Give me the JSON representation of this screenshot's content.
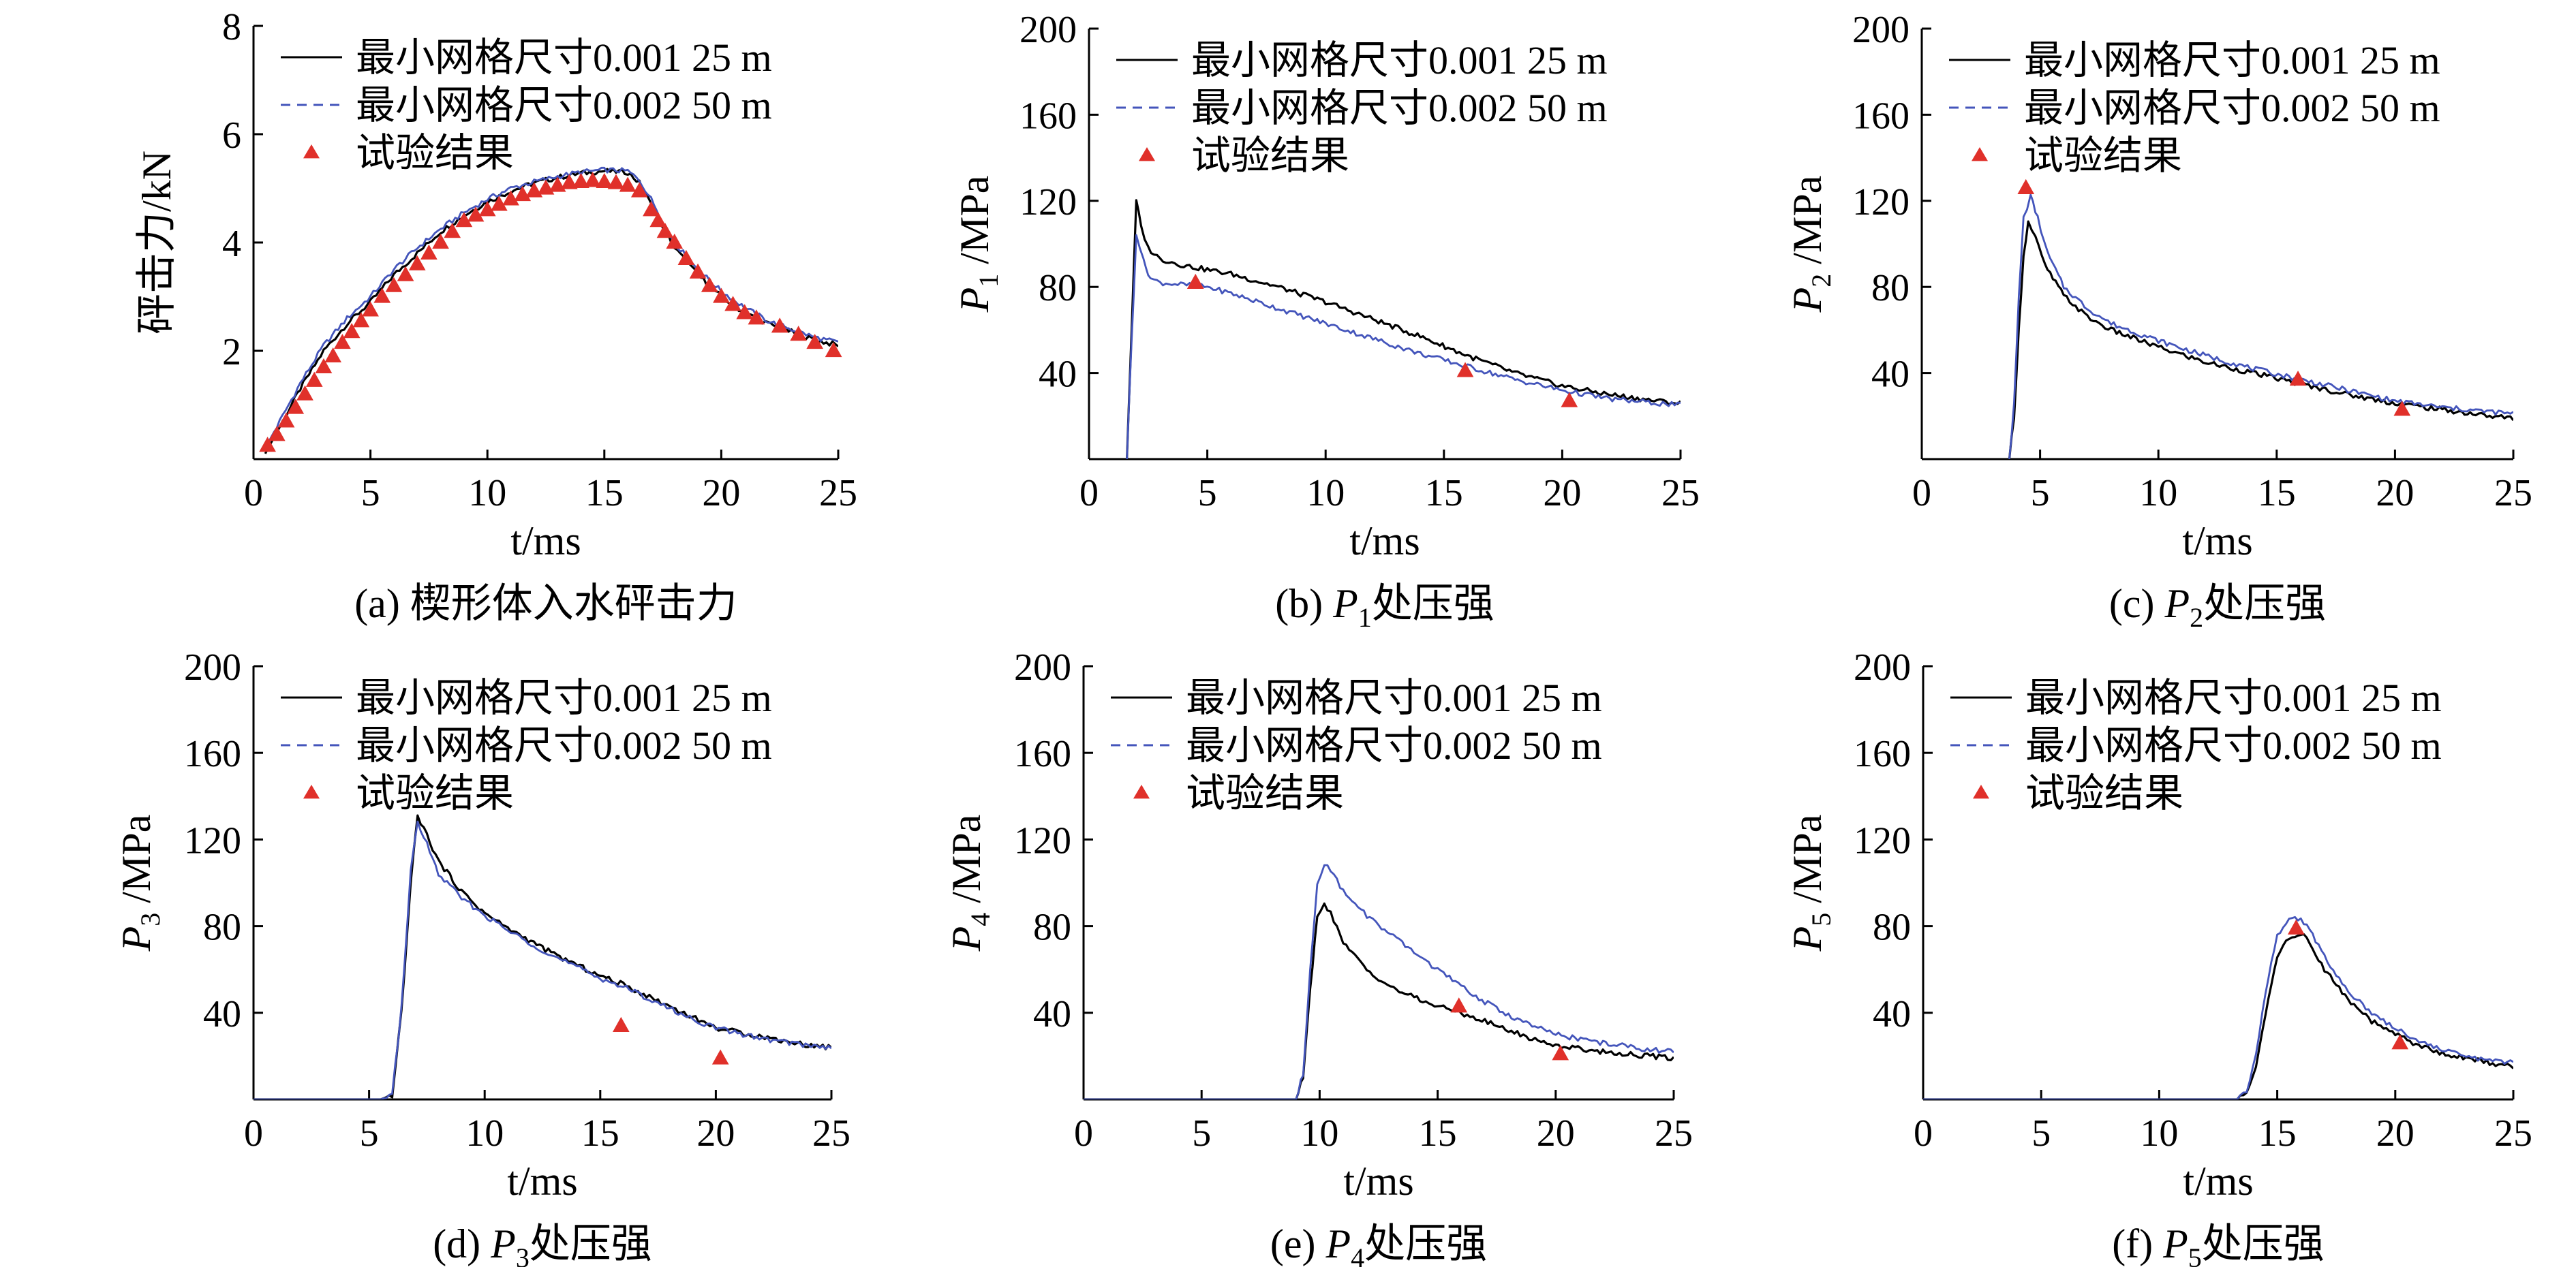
{
  "legend": {
    "fine": "最小网格尺寸0.001 25 m",
    "coarse": "最小网格尺寸0.002 50 m",
    "test": "试验结果"
  },
  "colors": {
    "fine": "#000000",
    "coarse": "#4455bb",
    "test": "#e0302a"
  },
  "chart_data": [
    {
      "type": "line",
      "id": "a",
      "caption": "(a) 楔形体入水砰击力",
      "xlabel": "t/ms",
      "ylabel": "砰击力/kN",
      "xlim": [
        0,
        25
      ],
      "ylim": [
        0,
        8
      ],
      "xticks": [
        0,
        5,
        10,
        15,
        20,
        25
      ],
      "yticks": [
        2,
        4,
        6,
        8
      ],
      "series": [
        {
          "name": "最小网格尺寸0.001 25 m",
          "x": [
            0.5,
            1,
            2,
            3,
            4,
            5,
            6,
            7,
            8,
            9,
            10,
            11,
            12,
            13,
            14,
            15,
            16,
            16.5,
            17,
            17.5,
            18,
            19,
            20,
            21,
            22,
            23,
            24,
            25
          ],
          "y": [
            0.1,
            0.5,
            1.3,
            2.0,
            2.5,
            2.9,
            3.4,
            3.8,
            4.2,
            4.5,
            4.75,
            4.95,
            5.1,
            5.2,
            5.28,
            5.32,
            5.3,
            5.1,
            4.7,
            4.3,
            3.9,
            3.4,
            3.0,
            2.7,
            2.5,
            2.35,
            2.2,
            2.1
          ]
        },
        {
          "name": "最小网格尺寸0.002 50 m",
          "x": [
            0.5,
            1,
            2,
            3,
            4,
            5,
            6,
            7,
            8,
            9,
            10,
            11,
            12,
            13,
            14,
            15,
            16,
            16.5,
            17,
            17.5,
            18,
            19,
            20,
            21,
            22,
            23,
            24,
            25
          ],
          "y": [
            0.2,
            0.6,
            1.4,
            2.1,
            2.6,
            3.0,
            3.5,
            3.9,
            4.25,
            4.55,
            4.8,
            5.0,
            5.12,
            5.22,
            5.3,
            5.34,
            5.32,
            5.15,
            4.8,
            4.4,
            4.0,
            3.5,
            3.1,
            2.8,
            2.55,
            2.4,
            2.25,
            2.15
          ]
        },
        {
          "name": "试验结果",
          "x": [
            0.6,
            1.0,
            1.4,
            1.8,
            2.2,
            2.6,
            3.0,
            3.4,
            3.8,
            4.2,
            4.6,
            5.0,
            5.5,
            6.0,
            6.5,
            7.0,
            7.5,
            8.0,
            8.5,
            9.0,
            9.5,
            10.0,
            10.5,
            11.0,
            11.5,
            12.0,
            12.5,
            13.0,
            13.5,
            14.0,
            14.5,
            15.0,
            15.5,
            16.0,
            16.5,
            17.0,
            17.3,
            17.6,
            18.0,
            18.5,
            19.0,
            19.5,
            20.0,
            20.5,
            21.0,
            21.5,
            22.5,
            23.3,
            24.0,
            24.8
          ],
          "y": [
            0.25,
            0.45,
            0.7,
            0.95,
            1.2,
            1.45,
            1.7,
            1.9,
            2.15,
            2.35,
            2.55,
            2.75,
            3.0,
            3.2,
            3.4,
            3.6,
            3.8,
            4.0,
            4.2,
            4.4,
            4.5,
            4.6,
            4.7,
            4.8,
            4.88,
            4.95,
            5.0,
            5.05,
            5.1,
            5.12,
            5.14,
            5.12,
            5.1,
            5.05,
            4.95,
            4.6,
            4.4,
            4.2,
            4.0,
            3.7,
            3.45,
            3.2,
            3.0,
            2.85,
            2.7,
            2.6,
            2.45,
            2.3,
            2.15,
            2.0
          ]
        }
      ]
    },
    {
      "type": "line",
      "id": "b",
      "caption_prefix": "(b) ",
      "caption_var": "P",
      "caption_sub": "1",
      "caption_suffix": "处压强",
      "xlabel": "t/ms",
      "ylabel_var": "P",
      "ylabel_sub": "1",
      "ylabel_unit": "/MPa",
      "xlim": [
        0,
        25
      ],
      "ylim": [
        0,
        200
      ],
      "xticks": [
        0,
        5,
        10,
        15,
        20,
        25
      ],
      "yticks": [
        40,
        80,
        120,
        160,
        200
      ],
      "series": [
        {
          "name": "最小网格尺寸0.001 25 m",
          "x": [
            1.6,
            1.8,
            2.0,
            2.2,
            2.5,
            3,
            4,
            5,
            6,
            8,
            10,
            12,
            14,
            16,
            18,
            20,
            22,
            24,
            25
          ],
          "y": [
            0,
            60,
            120,
            108,
            98,
            93,
            90,
            88,
            86,
            80,
            73,
            65,
            57,
            48,
            40,
            34,
            30,
            27,
            26
          ]
        },
        {
          "name": "最小网格尺寸0.002 50 m",
          "x": [
            1.6,
            1.8,
            2.0,
            2.3,
            2.6,
            3,
            4,
            5,
            6,
            8,
            10,
            12,
            14,
            16,
            18,
            20,
            22,
            24,
            25
          ],
          "y": [
            0,
            55,
            105,
            92,
            84,
            82,
            81,
            80,
            77,
            70,
            63,
            56,
            49,
            43,
            37,
            32,
            28,
            26,
            25
          ]
        },
        {
          "name": "试验结果",
          "x": [
            4.5,
            15.9,
            20.3
          ],
          "y": [
            82,
            41,
            27
          ]
        }
      ]
    },
    {
      "type": "line",
      "id": "c",
      "caption_prefix": "(c) ",
      "caption_var": "P",
      "caption_sub": "2",
      "caption_suffix": "处压强",
      "xlabel": "t/ms",
      "ylabel_var": "P",
      "ylabel_sub": "2",
      "ylabel_unit": "/MPa",
      "xlim": [
        0,
        25
      ],
      "ylim": [
        0,
        200
      ],
      "xticks": [
        0,
        5,
        10,
        15,
        20,
        25
      ],
      "yticks": [
        40,
        80,
        120,
        160,
        200
      ],
      "series": [
        {
          "name": "最小网格尺寸0.001 25 m",
          "x": [
            3.7,
            3.9,
            4.1,
            4.3,
            4.5,
            4.8,
            5.2,
            6,
            7,
            8,
            10,
            12,
            14,
            16,
            18,
            20,
            22,
            24,
            25
          ],
          "y": [
            0,
            20,
            60,
            95,
            110,
            103,
            90,
            76,
            66,
            60,
            52,
            45,
            40,
            35,
            30,
            26,
            23,
            20,
            19
          ]
        },
        {
          "name": "最小网格尺寸0.002 50 m",
          "x": [
            3.7,
            3.9,
            4.1,
            4.3,
            4.6,
            4.9,
            5.3,
            6,
            7,
            8,
            10,
            12,
            14,
            16,
            18,
            20,
            22,
            24,
            25
          ],
          "y": [
            0,
            25,
            75,
            112,
            122,
            112,
            96,
            80,
            70,
            63,
            55,
            48,
            42,
            37,
            32,
            27,
            24,
            22,
            21
          ]
        },
        {
          "name": "试验结果",
          "x": [
            4.4,
            15.9,
            20.3
          ],
          "y": [
            126,
            37,
            23
          ]
        }
      ]
    },
    {
      "type": "line",
      "id": "d",
      "caption_prefix": "(d) ",
      "caption_var": "P",
      "caption_sub": "3",
      "caption_suffix": "处压强",
      "xlabel": "t/ms",
      "ylabel_var": "P",
      "ylabel_sub": "3",
      "ylabel_unit": "/MPa",
      "xlim": [
        0,
        25
      ],
      "ylim": [
        0,
        200
      ],
      "xticks": [
        0,
        5,
        10,
        15,
        20,
        25
      ],
      "yticks": [
        40,
        80,
        120,
        160,
        200
      ],
      "series": [
        {
          "name": "最小网格尺寸0.001 25 m",
          "x": [
            0,
            5.5,
            6.0,
            6.4,
            6.8,
            7.1,
            7.5,
            8,
            9,
            10,
            11,
            12,
            13,
            14,
            15,
            16,
            17,
            18,
            19,
            20,
            22,
            24,
            25
          ],
          "y": [
            0,
            0,
            2,
            40,
            100,
            131,
            122,
            110,
            96,
            86,
            79,
            73,
            67,
            62,
            57,
            53,
            48,
            43,
            38,
            33,
            29,
            25,
            24
          ]
        },
        {
          "name": "最小网格尺寸0.002 50 m",
          "x": [
            0,
            5.5,
            6.0,
            6.4,
            6.8,
            7.1,
            7.5,
            8,
            9,
            10,
            11,
            12,
            13,
            14,
            15,
            16,
            17,
            18,
            19,
            20,
            22,
            24,
            25
          ],
          "y": [
            0,
            0,
            2,
            42,
            105,
            128,
            118,
            104,
            93,
            85,
            78,
            72,
            66,
            61,
            56,
            52,
            47,
            42,
            37,
            33,
            28,
            25,
            24
          ]
        },
        {
          "name": "试验结果",
          "x": [
            15.9,
            20.2
          ],
          "y": [
            34,
            19
          ]
        }
      ]
    },
    {
      "type": "line",
      "id": "e",
      "caption_prefix": "(e) ",
      "caption_var": "P",
      "caption_sub": "4",
      "caption_suffix": "处压强",
      "xlabel": "t/ms",
      "ylabel_var": "P",
      "ylabel_sub": "4",
      "ylabel_unit": "/MPa",
      "xlim": [
        0,
        25
      ],
      "ylim": [
        0,
        200
      ],
      "xticks": [
        0,
        5,
        10,
        15,
        20,
        25
      ],
      "yticks": [
        40,
        80,
        120,
        160,
        200
      ],
      "series": [
        {
          "name": "最小网格尺寸0.001 25 m",
          "x": [
            0,
            9.0,
            9.3,
            9.6,
            9.9,
            10.2,
            10.6,
            11,
            12,
            13,
            14,
            15,
            16,
            17,
            18,
            19,
            20,
            22,
            24,
            25
          ],
          "y": [
            0,
            0,
            10,
            50,
            85,
            91,
            83,
            72,
            60,
            52,
            47,
            43,
            40,
            36,
            32,
            28,
            25,
            22,
            20,
            19
          ]
        },
        {
          "name": "最小网格尺寸0.002 50 m",
          "x": [
            0,
            9.0,
            9.3,
            9.6,
            9.9,
            10.2,
            10.6,
            11,
            12,
            13,
            14,
            15,
            16,
            17,
            18,
            19,
            20,
            22,
            24,
            25
          ],
          "y": [
            0,
            0,
            12,
            60,
            100,
            109,
            104,
            96,
            85,
            76,
            68,
            60,
            52,
            45,
            39,
            34,
            30,
            26,
            23,
            22
          ]
        },
        {
          "name": "试验结果",
          "x": [
            15.9,
            20.2
          ],
          "y": [
            43,
            21
          ]
        }
      ]
    },
    {
      "type": "line",
      "id": "f",
      "caption_prefix": "(f) ",
      "caption_var": "P",
      "caption_sub": "5",
      "caption_suffix": "处压强",
      "xlabel": "t/ms",
      "ylabel_var": "P",
      "ylabel_sub": "5",
      "ylabel_unit": "/MPa",
      "xlim": [
        0,
        25
      ],
      "ylim": [
        0,
        200
      ],
      "xticks": [
        0,
        5,
        10,
        15,
        20,
        25
      ],
      "yticks": [
        40,
        80,
        120,
        160,
        200
      ],
      "series": [
        {
          "name": "最小网格尺寸0.001 25 m",
          "x": [
            0,
            13.3,
            13.7,
            14.1,
            14.5,
            15.0,
            15.5,
            16.0,
            16.5,
            17,
            18,
            19,
            20,
            21,
            22,
            23,
            24,
            25
          ],
          "y": [
            0,
            0,
            3,
            15,
            40,
            65,
            75,
            77,
            70,
            60,
            46,
            36,
            30,
            25,
            21,
            19,
            17,
            15
          ]
        },
        {
          "name": "最小网格尺寸0.002 50 m",
          "x": [
            0,
            13.3,
            13.7,
            14.1,
            14.5,
            15.0,
            15.5,
            16.0,
            16.5,
            17,
            18,
            19,
            20,
            21,
            22,
            23,
            24,
            25
          ],
          "y": [
            0,
            0,
            4,
            20,
            50,
            75,
            83,
            84,
            76,
            66,
            50,
            40,
            33,
            27,
            23,
            20,
            18,
            17
          ]
        },
        {
          "name": "试验结果",
          "x": [
            15.8,
            20.2
          ],
          "y": [
            79,
            26
          ]
        }
      ]
    }
  ]
}
